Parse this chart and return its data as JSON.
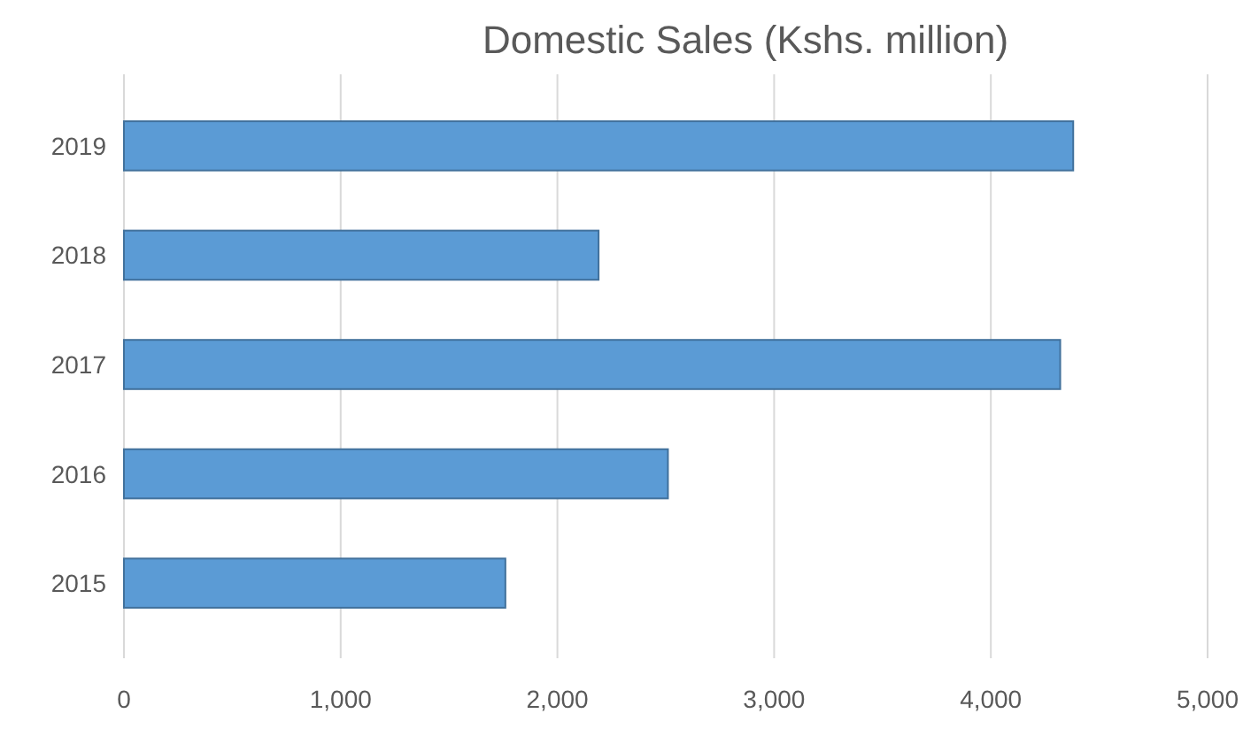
{
  "chart_data": {
    "type": "bar",
    "orientation": "horizontal",
    "title": "Domestic Sales (Kshs. million)",
    "categories": [
      "2019",
      "2018",
      "2017",
      "2016",
      "2015"
    ],
    "values": [
      4380,
      2190,
      4320,
      2510,
      1760
    ],
    "color": "#5b9bd5",
    "xlim": [
      0,
      5000
    ],
    "xticks": [
      {
        "value": 0,
        "label": "0"
      },
      {
        "value": 1000,
        "label": "1,000"
      },
      {
        "value": 2000,
        "label": "2,000"
      },
      {
        "value": 3000,
        "label": "3,000"
      },
      {
        "value": 4000,
        "label": "4,000"
      },
      {
        "value": 5000,
        "label": "5,000"
      }
    ],
    "grid": "x"
  }
}
